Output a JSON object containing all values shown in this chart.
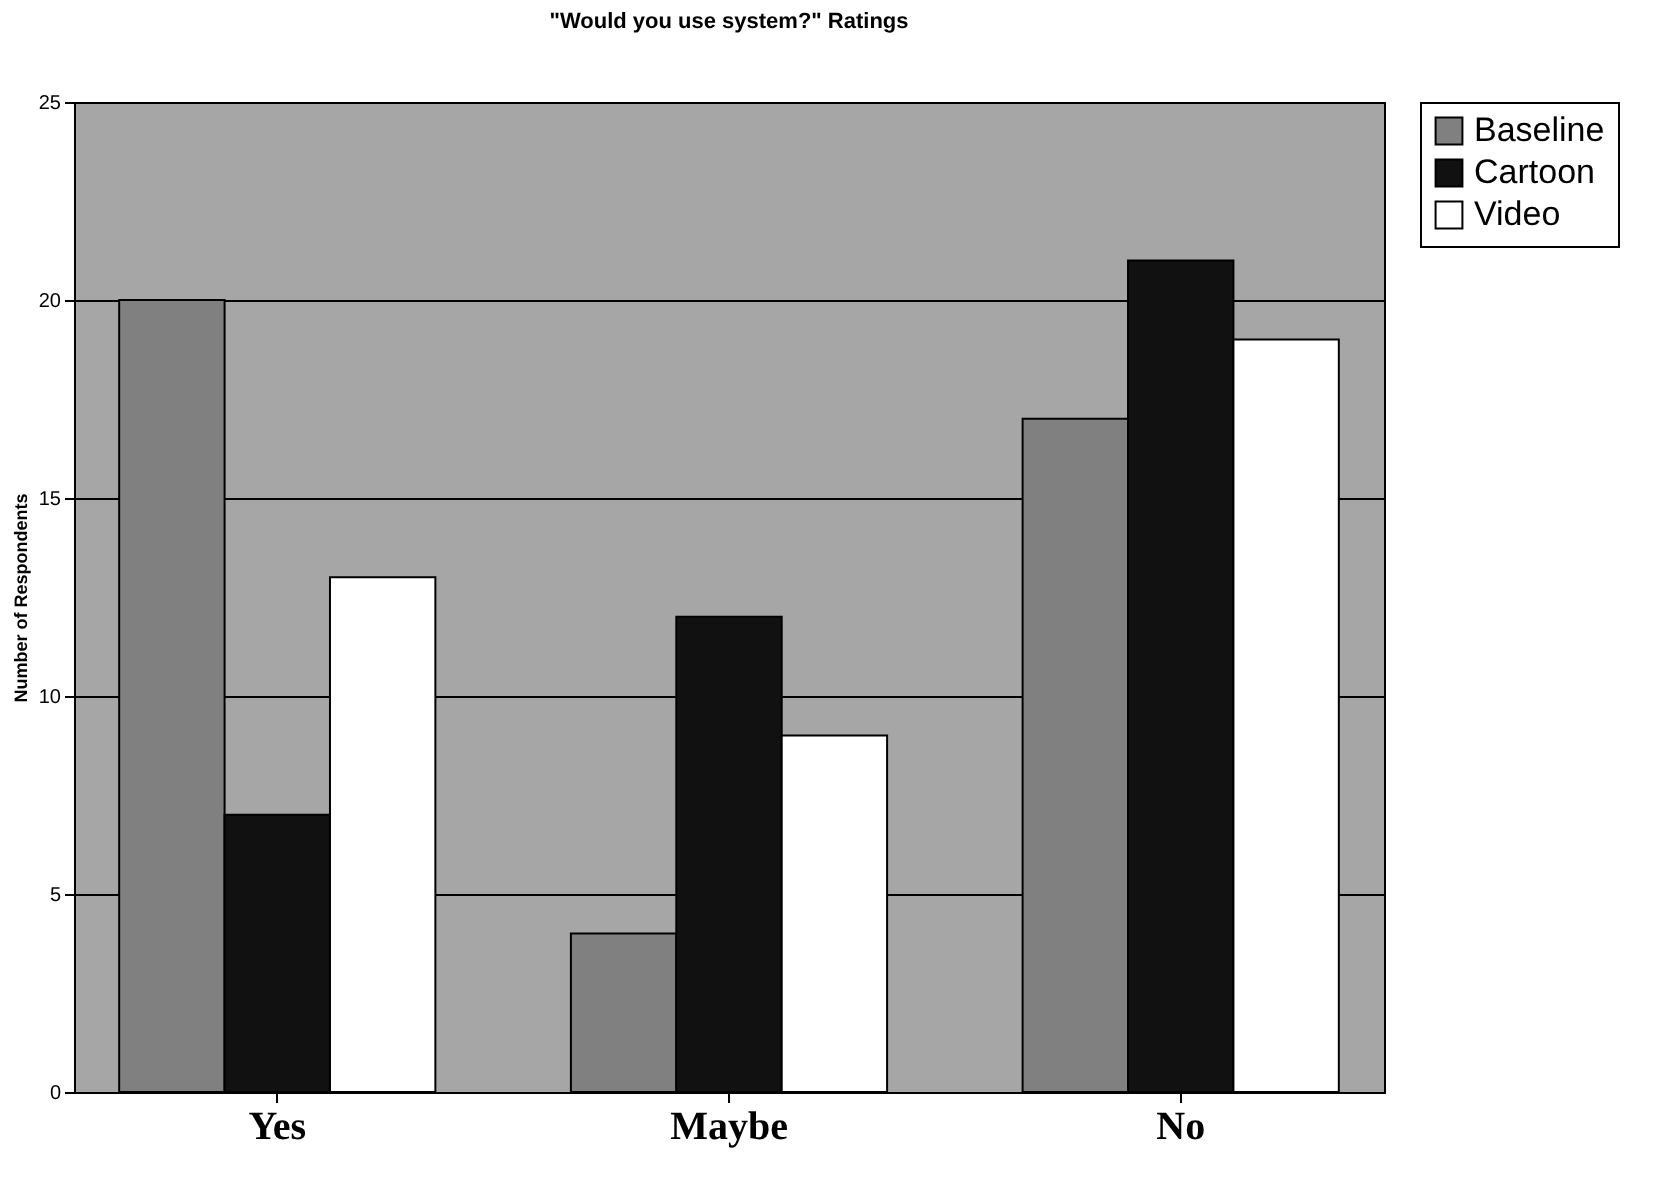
{
  "chart_data": {
    "type": "bar",
    "title": "\"Would you use system?\" Ratings",
    "ylabel": "Number of Respondents",
    "categories": [
      "Yes",
      "Maybe",
      "No"
    ],
    "series": [
      {
        "name": "Baseline",
        "color": "#808080",
        "values": [
          20,
          4,
          17
        ]
      },
      {
        "name": "Cartoon",
        "color": "#111111",
        "values": [
          7,
          12,
          21
        ]
      },
      {
        "name": "Video",
        "color": "#ffffff",
        "values": [
          13,
          9,
          19
        ]
      }
    ],
    "ylim": [
      0,
      25
    ],
    "yticks": [
      0,
      5,
      10,
      15,
      20,
      25
    ],
    "grid": "y",
    "legend": "right"
  }
}
